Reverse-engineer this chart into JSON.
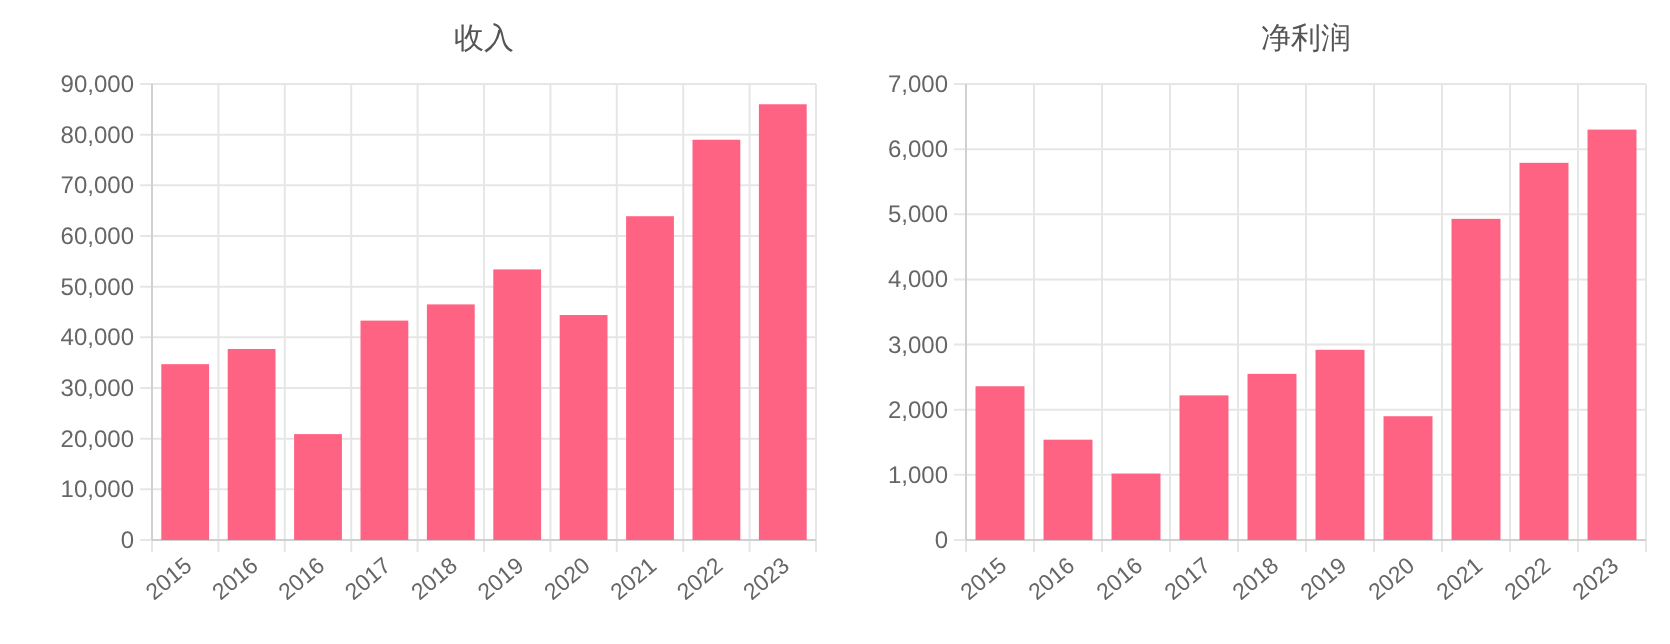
{
  "chart_data": [
    {
      "type": "bar",
      "title": "收入",
      "categories": [
        "2015",
        "2016",
        "2016",
        "2017",
        "2018",
        "2019",
        "2020",
        "2021",
        "2022",
        "2023"
      ],
      "values": [
        34700,
        37700,
        20900,
        43300,
        46500,
        53400,
        44400,
        63900,
        79000,
        86000
      ],
      "color": "#ff6384",
      "ylim": [
        0,
        90000
      ],
      "yticks": [
        0,
        {
          "value": 10000,
          "label": "10,000"
        },
        {
          "value": 20000,
          "label": "20,000"
        },
        {
          "value": 30000,
          "label": "30,000"
        },
        {
          "value": 40000,
          "label": "40,000"
        },
        {
          "value": 50000,
          "label": "50,000"
        },
        {
          "value": 60000,
          "label": "60,000"
        },
        {
          "value": 70000,
          "label": "70,000"
        },
        {
          "value": 80000,
          "label": "80,000"
        },
        {
          "value": 90000,
          "label": "90,000"
        }
      ],
      "grid": true
    },
    {
      "type": "bar",
      "title": "净利润",
      "categories": [
        "2015",
        "2016",
        "2016",
        "2017",
        "2018",
        "2019",
        "2020",
        "2021",
        "2022",
        "2023"
      ],
      "values": [
        2360,
        1540,
        1020,
        2220,
        2550,
        2920,
        1900,
        4930,
        5790,
        6300
      ],
      "color": "#ff6384",
      "ylim": [
        0,
        7000
      ],
      "yticks": [
        0,
        {
          "value": 1000,
          "label": "1,000"
        },
        {
          "value": 2000,
          "label": "2,000"
        },
        {
          "value": 3000,
          "label": "3,000"
        },
        {
          "value": 4000,
          "label": "4,000"
        },
        {
          "value": 5000,
          "label": "5,000"
        },
        {
          "value": 6000,
          "label": "6,000"
        },
        {
          "value": 7000,
          "label": "7,000"
        }
      ],
      "grid": true
    }
  ]
}
